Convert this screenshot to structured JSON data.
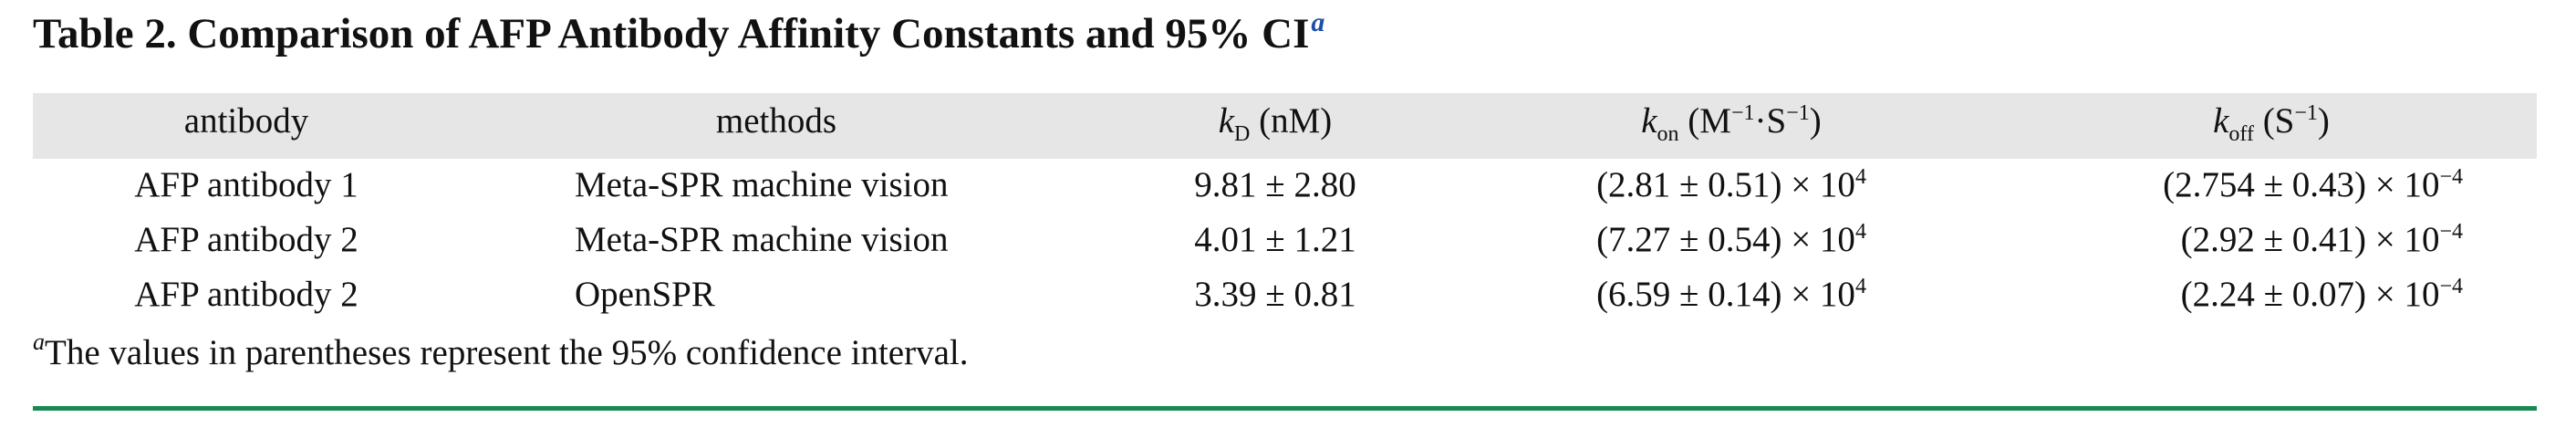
{
  "title": {
    "text": "Table 2. Comparison of AFP Antibody Affinity Constants and 95% CI",
    "footnote_mark": "a"
  },
  "header": {
    "antibody": "antibody",
    "methods": "methods",
    "kd": {
      "symbol": "k",
      "sub": "D",
      "unit": "(nM)"
    },
    "kon": {
      "symbol": "k",
      "sub": "on",
      "unit_a": "(M",
      "exp_a": "−1",
      "unit_b": "·S",
      "exp_b": "−1",
      "unit_c": ")"
    },
    "koff": {
      "symbol": "k",
      "sub": "off",
      "unit_a": "(S",
      "exp_a": "−1",
      "unit_c": ")"
    }
  },
  "rows": [
    {
      "antibody": "AFP antibody 1",
      "method": "Meta-SPR machine vision",
      "kd": "9.81 ± 2.80",
      "kon": "(2.81 ± 0.51) × 10",
      "kon_exp": "4",
      "koff": "(2.754 ± 0.43) × 10",
      "koff_exp": "−4"
    },
    {
      "antibody": "AFP antibody 2",
      "method": "Meta-SPR machine vision",
      "kd": "4.01 ± 1.21",
      "kon": "(7.27 ± 0.54) × 10",
      "kon_exp": "4",
      "koff": "(2.92 ± 0.41) × 10",
      "koff_exp": "−4"
    },
    {
      "antibody": "AFP antibody 2",
      "method": "OpenSPR",
      "kd": "3.39 ± 0.81",
      "kon": "(6.59 ± 0.14) × 10",
      "kon_exp": "4",
      "koff": "(2.24 ± 0.07) × 10",
      "koff_exp": "−4"
    }
  ],
  "footnote": {
    "mark": "a",
    "text": "The values in parentheses represent the 95% confidence interval."
  },
  "colors": {
    "header_band": "#e6e6e6",
    "rule": "#178a52",
    "footnote_mark": "#1f4fa8"
  }
}
